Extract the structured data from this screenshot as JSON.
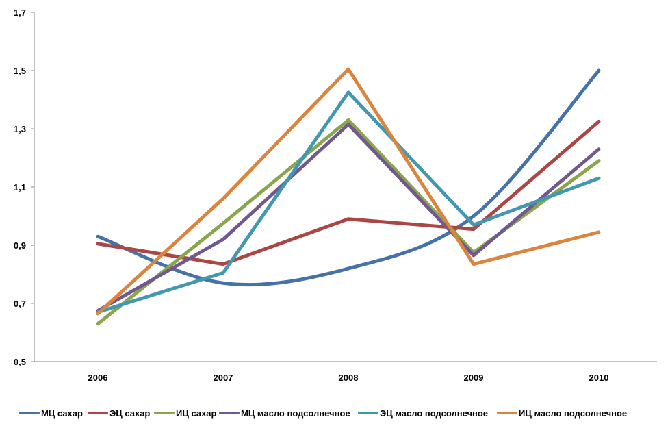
{
  "chart_data": {
    "type": "line",
    "categories": [
      "2006",
      "2007",
      "2008",
      "2009",
      "2010"
    ],
    "ylim": [
      0.5,
      1.7
    ],
    "yticks": [
      "0,5",
      "0,7",
      "0,9",
      "1,1",
      "1,3",
      "1,5",
      "1,7"
    ],
    "ytick_values": [
      0.5,
      0.7,
      0.9,
      1.1,
      1.3,
      1.5,
      1.7
    ],
    "grid": false,
    "legend_position": "bottom",
    "series": [
      {
        "name": "МЦ сахар",
        "color": "#4572a7",
        "smooth": true,
        "values": [
          0.93,
          0.77,
          0.82,
          1.0,
          1.5
        ]
      },
      {
        "name": "ЭЦ сахар",
        "color": "#aa4643",
        "smooth": false,
        "values": [
          0.905,
          0.835,
          0.99,
          0.955,
          1.325
        ]
      },
      {
        "name": "ИЦ сахар",
        "color": "#89a54e",
        "smooth": false,
        "values": [
          0.63,
          0.975,
          1.33,
          0.875,
          1.19
        ]
      },
      {
        "name": "МЦ масло подсолнечное",
        "color": "#71588f",
        "smooth": false,
        "values": [
          0.675,
          0.92,
          1.315,
          0.865,
          1.23
        ]
      },
      {
        "name": "ЭЦ масло подсолнечное",
        "color": "#4198af",
        "smooth": false,
        "values": [
          0.67,
          0.805,
          1.425,
          0.97,
          1.13
        ]
      },
      {
        "name": "ИЦ масло подсолнечное",
        "color": "#db843d",
        "smooth": false,
        "values": [
          0.665,
          1.06,
          1.505,
          0.835,
          0.945
        ]
      }
    ]
  }
}
